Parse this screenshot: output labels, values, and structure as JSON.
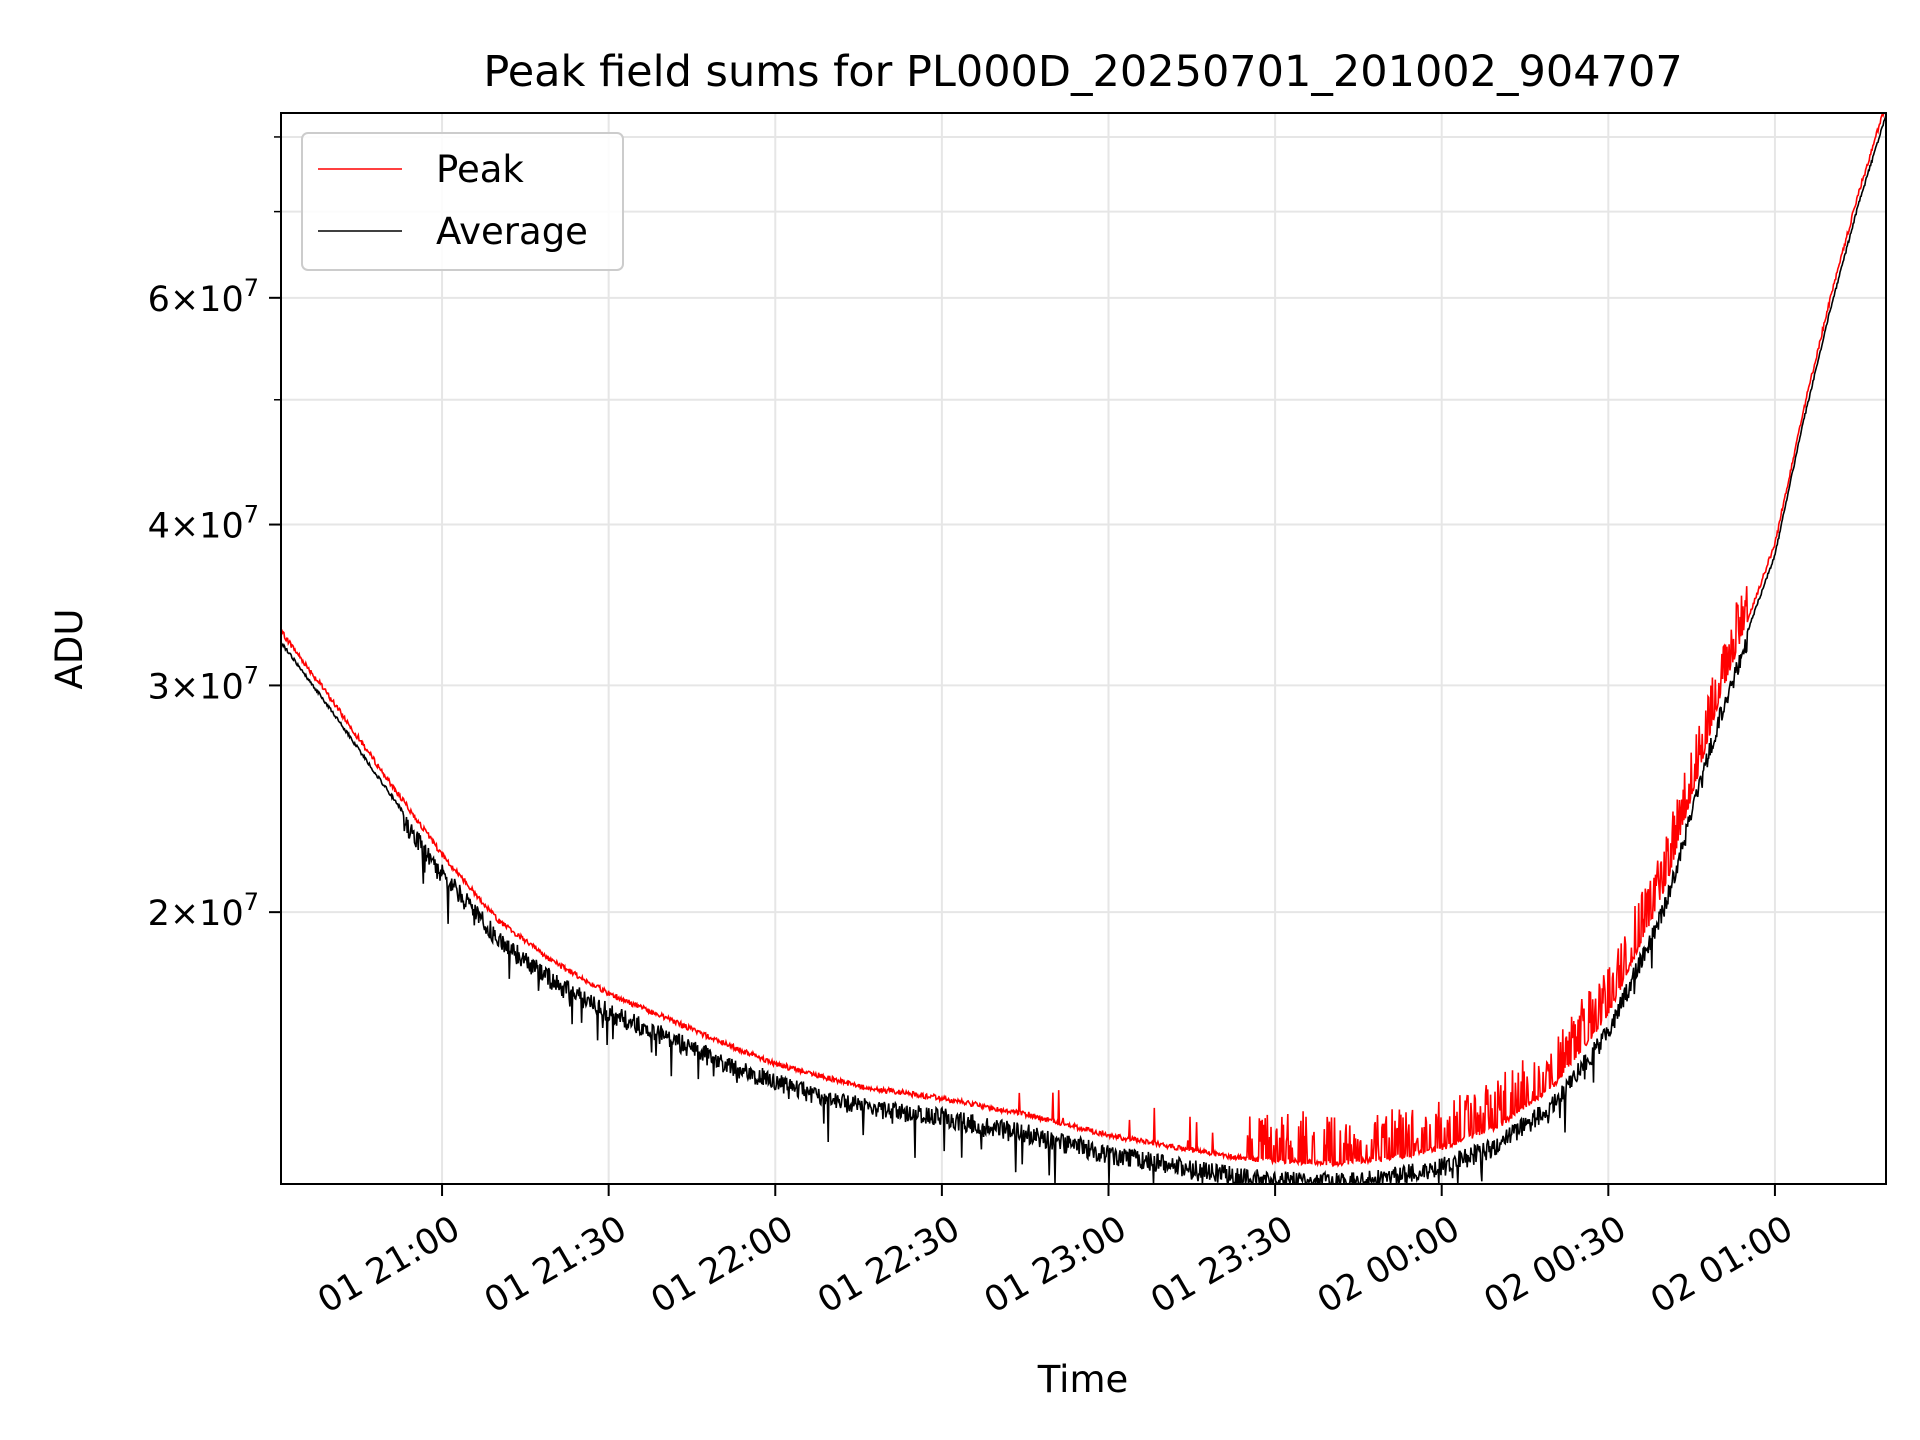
{
  "chart_data": {
    "type": "line",
    "title": "Peak field sums for PL000D_20250701_201002_904707",
    "xlabel": "Time",
    "ylabel": "ADU",
    "x_range": [
      "2025-07-01 20:31",
      "2025-07-02 01:20"
    ],
    "x_ticks": [
      {
        "t": "2025-07-01 21:00",
        "label": "01 21:00"
      },
      {
        "t": "2025-07-01 21:30",
        "label": "01 21:30"
      },
      {
        "t": "2025-07-01 22:00",
        "label": "01 22:00"
      },
      {
        "t": "2025-07-01 22:30",
        "label": "01 22:30"
      },
      {
        "t": "2025-07-01 23:00",
        "label": "01 23:00"
      },
      {
        "t": "2025-07-01 23:30",
        "label": "01 23:30"
      },
      {
        "t": "2025-07-02 00:00",
        "label": "02 00:00"
      },
      {
        "t": "2025-07-02 00:30",
        "label": "02 00:30"
      },
      {
        "t": "2025-07-02 01:00",
        "label": "02 01:00"
      }
    ],
    "y_scale": "log",
    "ylim": [
      12300000,
      83500000
    ],
    "y_major_ticks": [
      {
        "v": 20000000,
        "mantissa": "2",
        "exp": "7"
      },
      {
        "v": 30000000,
        "mantissa": "3",
        "exp": "7"
      },
      {
        "v": 40000000,
        "mantissa": "4",
        "exp": "7"
      },
      {
        "v": 60000000,
        "mantissa": "6",
        "exp": "7"
      }
    ],
    "y_minor_ticks": [
      50000000,
      70000000,
      80000000
    ],
    "grid": true,
    "legend_position": "top-left",
    "series": [
      {
        "name": "Peak",
        "color": "#ff0000",
        "role": "peak"
      },
      {
        "name": "Average",
        "color": "#000000",
        "role": "average"
      }
    ],
    "trend": [
      {
        "t": "2025-07-01 20:31",
        "v": 32500000
      },
      {
        "t": "2025-07-01 20:40",
        "v": 28800000
      },
      {
        "t": "2025-07-01 20:50",
        "v": 25000000
      },
      {
        "t": "2025-07-01 21:00",
        "v": 21800000
      },
      {
        "t": "2025-07-01 21:10",
        "v": 19400000
      },
      {
        "t": "2025-07-01 21:20",
        "v": 18000000
      },
      {
        "t": "2025-07-01 21:30",
        "v": 17000000
      },
      {
        "t": "2025-07-01 21:40",
        "v": 16300000
      },
      {
        "t": "2025-07-01 21:50",
        "v": 15600000
      },
      {
        "t": "2025-07-01 22:00",
        "v": 15000000
      },
      {
        "t": "2025-07-01 22:15",
        "v": 14400000
      },
      {
        "t": "2025-07-01 22:30",
        "v": 14100000
      },
      {
        "t": "2025-07-01 22:45",
        "v": 13700000
      },
      {
        "t": "2025-07-01 23:00",
        "v": 13200000
      },
      {
        "t": "2025-07-01 23:15",
        "v": 12850000
      },
      {
        "t": "2025-07-01 23:25",
        "v": 12650000
      },
      {
        "t": "2025-07-01 23:40",
        "v": 12550000
      },
      {
        "t": "2025-07-01 23:50",
        "v": 12650000
      },
      {
        "t": "2025-07-02 00:00",
        "v": 12900000
      },
      {
        "t": "2025-07-02 00:10",
        "v": 13400000
      },
      {
        "t": "2025-07-02 00:20",
        "v": 14400000
      },
      {
        "t": "2025-07-02 00:30",
        "v": 16400000
      },
      {
        "t": "2025-07-02 00:40",
        "v": 20400000
      },
      {
        "t": "2025-07-02 00:50",
        "v": 28800000
      },
      {
        "t": "2025-07-02 01:00",
        "v": 38000000
      },
      {
        "t": "2025-07-02 01:05",
        "v": 48000000
      },
      {
        "t": "2025-07-02 01:10",
        "v": 59000000
      },
      {
        "t": "2025-07-02 01:15",
        "v": 71000000
      },
      {
        "t": "2025-07-02 01:20",
        "v": 83500000
      }
    ]
  }
}
